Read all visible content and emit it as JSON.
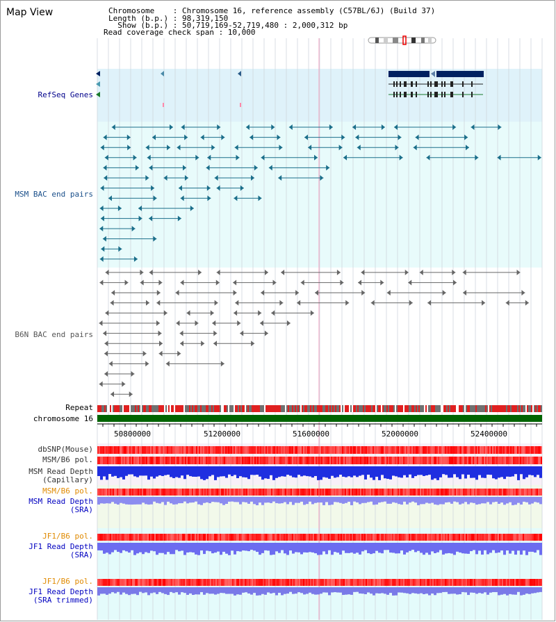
{
  "title": "Map View",
  "info": {
    "chromosome_line": "Chromosome    : Chromosome 16, reference assembly (C57BL/6J) (Build 37)",
    "length_line": "Length (b.p.) : 98,319,150",
    "show_line": "  Show (b.p.) : 50,719,169-52,719,480 : 2,000,312 bp",
    "coverage_line": "Read coverage check span : 10,000"
  },
  "tracks": {
    "refseq": "RefSeq Genes",
    "msm_bac": "MSM BAC end pairs",
    "b6n_bac": "B6N BAC end pairs",
    "repeat": "Repeat",
    "chromosome": "chromosome 16",
    "dbsnp": "dbSNP(Mouse)",
    "msm_b6_pol_1": "MSM/B6 pol.",
    "msm_depth_cap_1": "MSM Read Depth",
    "msm_depth_cap_2": "(Capillary)",
    "msm_b6_pol_2": "MSM/B6 pol.",
    "msm_depth_sra_1": "MSM Read Depth",
    "msm_depth_sra_2": "(SRA)",
    "jf1_b6_pol_1": "JF1/B6 pol.",
    "jf1_depth_sra_1": "JF1 Read Depth",
    "jf1_depth_sra_2": "(SRA)",
    "jf1_b6_pol_2": "JF1/B6 pol.",
    "jf1_depth_trim_1": "JF1 Read Depth",
    "jf1_depth_trim_2": "(SRA trimmed)"
  },
  "axis": {
    "ticks": [
      "50800000",
      "51200000",
      "51600000",
      "52000000",
      "52400000"
    ]
  },
  "colors": {
    "refseq_label": "#00008b",
    "msm_label": "#1a4f8a",
    "b6n_label": "#555555",
    "orange_label": "#e08a00",
    "blue_label": "#0000c0",
    "gene_dark": "#002060",
    "bac_teal": "#1a6e8a",
    "chrom_green": "#006400"
  }
}
